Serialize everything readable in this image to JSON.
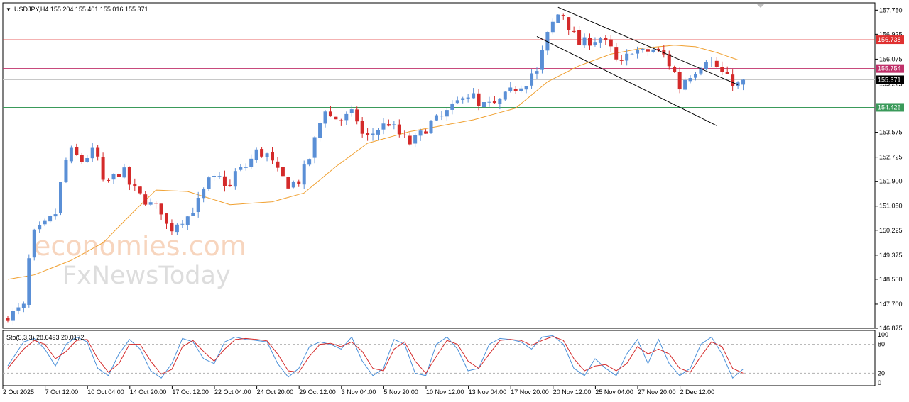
{
  "header": {
    "symbol_line": "USDJPY,H4  155.204 155.401 155.016 155.371",
    "stoch_line": "Sto(5,3,3) 28.6493 20.0172"
  },
  "watermark": {
    "line1": "economies.com",
    "line2": "FxNewsToday"
  },
  "colors": {
    "bull": "#5a8fd6",
    "bear": "#d42a2a",
    "ma": "#f0a030",
    "resistance": "#e03030",
    "pivot": "#c0306a",
    "support": "#3a9a5a",
    "stoch_k": "#4a90d9",
    "stoch_d": "#d42a2a"
  },
  "chart_data": {
    "type": "candlestick",
    "symbol": "USDJPY",
    "timeframe": "H4",
    "ohlc_last": {
      "open": 155.204,
      "high": 155.401,
      "low": 155.016,
      "close": 155.371
    },
    "y_ticks": [
      "157.750",
      "156.925",
      "156.075",
      "155.225",
      "154.400",
      "153.575",
      "152.725",
      "151.900",
      "151.050",
      "150.225",
      "149.375",
      "148.550",
      "147.700",
      "146.875"
    ],
    "ylim": [
      146.875,
      158.0
    ],
    "x_labels": [
      "2 Oct 2025",
      "7 Oct 12:00",
      "10 Oct 04:00",
      "14 Oct 20:00",
      "17 Oct 12:00",
      "22 Oct 04:00",
      "24 Oct 20:00",
      "29 Oct 12:00",
      "3 Nov 04:00",
      "5 Nov 20:00",
      "10 Nov 12:00",
      "13 Nov 04:00",
      "17 Nov 20:00",
      "20 Nov 12:00",
      "25 Nov 04:00",
      "27 Nov 20:00",
      "2 Dec 12:00"
    ],
    "x_label_index": [
      0,
      8,
      16,
      24,
      32,
      40,
      48,
      56,
      64,
      72,
      80,
      88,
      96,
      104,
      112,
      120,
      128
    ],
    "levels": [
      {
        "value": "156.738",
        "role": "resistance"
      },
      {
        "value": "155.754",
        "role": "pivot"
      },
      {
        "value": "155.371",
        "role": "current"
      },
      {
        "value": "154.426",
        "role": "support"
      }
    ],
    "channel": {
      "upper": [
        [
          104,
          157.85
        ],
        [
          138,
          155.2
        ]
      ],
      "lower": [
        [
          100,
          156.85
        ],
        [
          134,
          153.8
        ]
      ]
    },
    "close_path": [
      [
        0,
        147.3
      ],
      [
        2,
        147.5
      ],
      [
        3,
        147.6
      ],
      [
        4,
        149.2
      ],
      [
        5,
        150.1
      ],
      [
        7,
        150.4
      ],
      [
        9,
        150.8
      ],
      [
        10,
        151.8
      ],
      [
        11,
        152.6
      ],
      [
        12,
        152.9
      ],
      [
        14,
        152.6
      ],
      [
        16,
        152.9
      ],
      [
        17,
        152.7
      ],
      [
        18,
        151.8
      ],
      [
        19,
        151.9
      ],
      [
        21,
        152.2
      ],
      [
        22,
        152.2
      ],
      [
        23,
        151.8
      ],
      [
        25,
        151.4
      ],
      [
        27,
        151.1
      ],
      [
        29,
        150.9
      ],
      [
        30,
        150.4
      ],
      [
        31,
        150.3
      ],
      [
        32,
        150.5
      ],
      [
        34,
        150.7
      ],
      [
        36,
        151.2
      ],
      [
        38,
        151.9
      ],
      [
        40,
        152.0
      ],
      [
        42,
        151.7
      ],
      [
        43,
        152.2
      ],
      [
        45,
        152.4
      ],
      [
        47,
        152.9
      ],
      [
        49,
        152.8
      ],
      [
        51,
        152.2
      ],
      [
        53,
        151.8
      ],
      [
        55,
        151.9
      ],
      [
        57,
        152.7
      ],
      [
        59,
        153.9
      ],
      [
        60,
        154.4
      ],
      [
        61,
        154.1
      ],
      [
        63,
        154.0
      ],
      [
        65,
        154.2
      ],
      [
        66,
        154.0
      ],
      [
        67,
        153.5
      ],
      [
        68,
        153.4
      ],
      [
        70,
        153.7
      ],
      [
        72,
        153.9
      ],
      [
        74,
        153.5
      ],
      [
        76,
        153.2
      ],
      [
        78,
        153.5
      ],
      [
        80,
        153.9
      ],
      [
        82,
        154.1
      ],
      [
        84,
        154.4
      ],
      [
        85,
        154.6
      ],
      [
        86,
        154.9
      ],
      [
        88,
        154.8
      ],
      [
        89,
        154.4
      ],
      [
        90,
        154.5
      ],
      [
        92,
        154.5
      ],
      [
        94,
        154.8
      ],
      [
        96,
        155.1
      ],
      [
        98,
        155.3
      ],
      [
        99,
        155.6
      ],
      [
        100,
        155.6
      ],
      [
        101,
        156.3
      ],
      [
        102,
        156.9
      ],
      [
        103,
        157.3
      ],
      [
        104,
        157.6
      ],
      [
        105,
        157.6
      ],
      [
        106,
        157.2
      ],
      [
        107,
        156.9
      ],
      [
        108,
        156.6
      ],
      [
        110,
        156.7
      ],
      [
        112,
        156.8
      ],
      [
        114,
        156.4
      ],
      [
        115,
        156.0
      ],
      [
        116,
        155.9
      ],
      [
        118,
        156.4
      ],
      [
        120,
        156.3
      ],
      [
        122,
        156.4
      ],
      [
        124,
        156.2
      ],
      [
        126,
        155.6
      ],
      [
        127,
        155.1
      ],
      [
        128,
        155.4
      ],
      [
        130,
        155.7
      ],
      [
        132,
        156.1
      ],
      [
        134,
        155.8
      ],
      [
        136,
        155.4
      ],
      [
        138,
        155.2
      ],
      [
        139,
        155.371
      ]
    ],
    "ma_path": [
      [
        0,
        148.55
      ],
      [
        5,
        148.7
      ],
      [
        12,
        149.2
      ],
      [
        18,
        149.8
      ],
      [
        24,
        150.9
      ],
      [
        28,
        151.6
      ],
      [
        34,
        151.55
      ],
      [
        42,
        151.1
      ],
      [
        50,
        151.2
      ],
      [
        56,
        151.5
      ],
      [
        62,
        152.4
      ],
      [
        68,
        153.2
      ],
      [
        76,
        153.6
      ],
      [
        82,
        153.8
      ],
      [
        88,
        154.0
      ],
      [
        96,
        154.4
      ],
      [
        102,
        155.3
      ],
      [
        108,
        155.85
      ],
      [
        114,
        156.25
      ],
      [
        120,
        156.45
      ],
      [
        126,
        156.55
      ],
      [
        130,
        156.5
      ],
      [
        134,
        156.3
      ],
      [
        138,
        156.05
      ]
    ],
    "stochastic": {
      "name": "Sto(5,3,3)",
      "k": 28.6493,
      "d": 20.0172,
      "levels": [
        20,
        80
      ],
      "ticks": [
        "100",
        "80",
        "20",
        "0"
      ],
      "k_path": [
        [
          0,
          35
        ],
        [
          3,
          85
        ],
        [
          5,
          92
        ],
        [
          7,
          70
        ],
        [
          9,
          35
        ],
        [
          11,
          80
        ],
        [
          13,
          95
        ],
        [
          15,
          85
        ],
        [
          17,
          30
        ],
        [
          19,
          15
        ],
        [
          21,
          60
        ],
        [
          23,
          90
        ],
        [
          25,
          70
        ],
        [
          27,
          25
        ],
        [
          29,
          10
        ],
        [
          31,
          40
        ],
        [
          33,
          92
        ],
        [
          35,
          85
        ],
        [
          37,
          50
        ],
        [
          39,
          40
        ],
        [
          41,
          85
        ],
        [
          43,
          95
        ],
        [
          45,
          90
        ],
        [
          47,
          88
        ],
        [
          49,
          85
        ],
        [
          51,
          40
        ],
        [
          53,
          12
        ],
        [
          55,
          30
        ],
        [
          57,
          75
        ],
        [
          59,
          85
        ],
        [
          61,
          80
        ],
        [
          63,
          70
        ],
        [
          65,
          95
        ],
        [
          67,
          45
        ],
        [
          69,
          15
        ],
        [
          71,
          30
        ],
        [
          73,
          90
        ],
        [
          75,
          80
        ],
        [
          77,
          20
        ],
        [
          79,
          15
        ],
        [
          81,
          80
        ],
        [
          83,
          95
        ],
        [
          85,
          70
        ],
        [
          87,
          25
        ],
        [
          89,
          30
        ],
        [
          91,
          80
        ],
        [
          93,
          92
        ],
        [
          95,
          90
        ],
        [
          97,
          85
        ],
        [
          99,
          70
        ],
        [
          101,
          95
        ],
        [
          103,
          98
        ],
        [
          105,
          80
        ],
        [
          107,
          30
        ],
        [
          109,
          15
        ],
        [
          111,
          50
        ],
        [
          113,
          30
        ],
        [
          115,
          15
        ],
        [
          117,
          60
        ],
        [
          119,
          90
        ],
        [
          121,
          40
        ],
        [
          123,
          90
        ],
        [
          125,
          40
        ],
        [
          127,
          15
        ],
        [
          129,
          30
        ],
        [
          131,
          80
        ],
        [
          133,
          95
        ],
        [
          135,
          60
        ],
        [
          137,
          10
        ],
        [
          139,
          28.6493
        ]
      ],
      "d_path": [
        [
          0,
          30
        ],
        [
          3,
          70
        ],
        [
          5,
          88
        ],
        [
          7,
          80
        ],
        [
          9,
          50
        ],
        [
          11,
          65
        ],
        [
          13,
          88
        ],
        [
          15,
          90
        ],
        [
          17,
          50
        ],
        [
          19,
          22
        ],
        [
          21,
          40
        ],
        [
          23,
          80
        ],
        [
          25,
          80
        ],
        [
          27,
          45
        ],
        [
          29,
          18
        ],
        [
          31,
          28
        ],
        [
          33,
          75
        ],
        [
          35,
          88
        ],
        [
          37,
          65
        ],
        [
          39,
          45
        ],
        [
          41,
          70
        ],
        [
          43,
          90
        ],
        [
          45,
          92
        ],
        [
          47,
          90
        ],
        [
          49,
          87
        ],
        [
          51,
          60
        ],
        [
          53,
          25
        ],
        [
          55,
          22
        ],
        [
          57,
          55
        ],
        [
          59,
          80
        ],
        [
          61,
          82
        ],
        [
          63,
          75
        ],
        [
          65,
          85
        ],
        [
          67,
          65
        ],
        [
          69,
          30
        ],
        [
          71,
          25
        ],
        [
          73,
          70
        ],
        [
          75,
          85
        ],
        [
          77,
          45
        ],
        [
          79,
          20
        ],
        [
          81,
          55
        ],
        [
          83,
          88
        ],
        [
          85,
          80
        ],
        [
          87,
          45
        ],
        [
          89,
          30
        ],
        [
          91,
          60
        ],
        [
          93,
          88
        ],
        [
          95,
          90
        ],
        [
          97,
          88
        ],
        [
          99,
          78
        ],
        [
          101,
          88
        ],
        [
          103,
          96
        ],
        [
          105,
          88
        ],
        [
          107,
          50
        ],
        [
          109,
          25
        ],
        [
          111,
          35
        ],
        [
          113,
          38
        ],
        [
          115,
          25
        ],
        [
          117,
          40
        ],
        [
          119,
          75
        ],
        [
          121,
          60
        ],
        [
          123,
          70
        ],
        [
          125,
          60
        ],
        [
          127,
          30
        ],
        [
          129,
          22
        ],
        [
          131,
          55
        ],
        [
          133,
          85
        ],
        [
          135,
          75
        ],
        [
          137,
          30
        ],
        [
          139,
          20.0172
        ]
      ]
    }
  }
}
